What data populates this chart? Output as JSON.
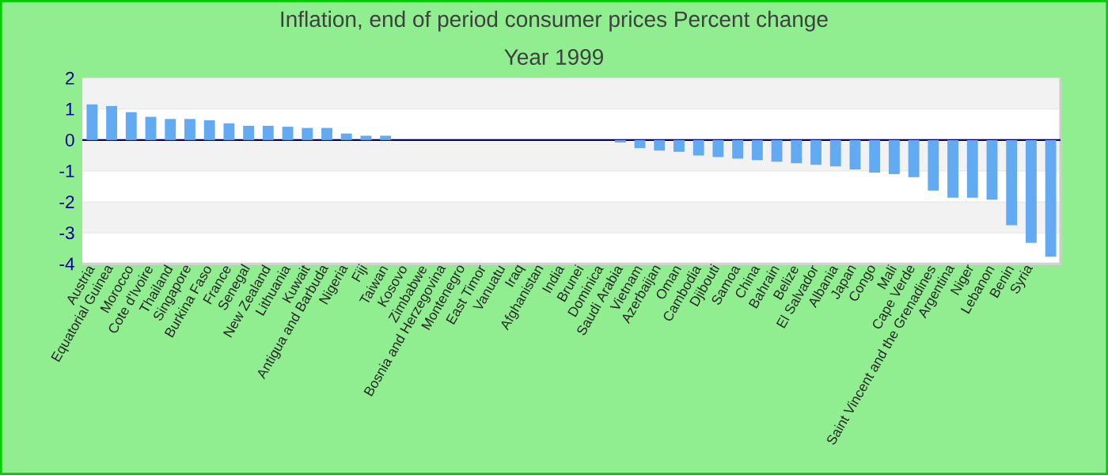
{
  "chart_data": {
    "type": "bar",
    "title": "Inflation, end of period consumer prices Percent change",
    "subtitle": "Year 1999",
    "categories": [
      "Austria",
      "Equatorial Guinea",
      "Morocco",
      "Cote d'Ivoire",
      "Thailand",
      "Singapore",
      "Burkina Faso",
      "France",
      "Senegal",
      "New Zealand",
      "Lithuania",
      "Kuwait",
      "Antigua and Barbuda",
      "Nigeria",
      "Fiji",
      "Taiwan",
      "Kosovo",
      "Zimbabwe",
      "Bosnia and Herzegovina",
      "Montenegro",
      "East Timor",
      "Vanuatu",
      "Iraq",
      "Afghanistan",
      "India",
      "Brunei",
      "Dominica",
      "Saudi Arabia",
      "Vietnam",
      "Azerbaijan",
      "Oman",
      "Cambodia",
      "Djibouti",
      "Samoa",
      "China",
      "Bahrain",
      "Belize",
      "El Salvador",
      "Albania",
      "Japan",
      "Congo",
      "Mali",
      "Cape Verde",
      "Saint Vincent and the Grenadines",
      "Argentina",
      "Niger",
      "Lebanon",
      "Benin",
      "Syria",
      null
    ],
    "series": [
      {
        "color": "#62aaf2",
        "values": [
          1.15,
          1.1,
          0.9,
          0.75,
          0.68,
          0.68,
          0.64,
          0.54,
          0.46,
          0.46,
          0.43,
          0.39,
          0.39,
          0.21,
          0.14,
          0.14,
          0,
          0,
          0,
          0,
          0,
          0,
          0,
          0,
          0,
          0,
          0,
          -0.08,
          -0.26,
          -0.34,
          -0.38,
          -0.5,
          -0.55,
          -0.6,
          -0.65,
          -0.7,
          -0.75,
          -0.8,
          -0.85,
          -0.95,
          -1.05,
          -1.1,
          -1.2,
          -1.63,
          -1.86,
          -1.86,
          -1.93,
          -2.75,
          -3.32,
          -3.77
        ]
      }
    ],
    "ylim": [
      -4,
      2
    ],
    "yticks": [
      -4,
      -3,
      -2,
      -1,
      0,
      1,
      2
    ],
    "grid": "y",
    "ref_lines": [
      {
        "axis": "y",
        "value": 0,
        "color": "#00006e"
      }
    ]
  }
}
